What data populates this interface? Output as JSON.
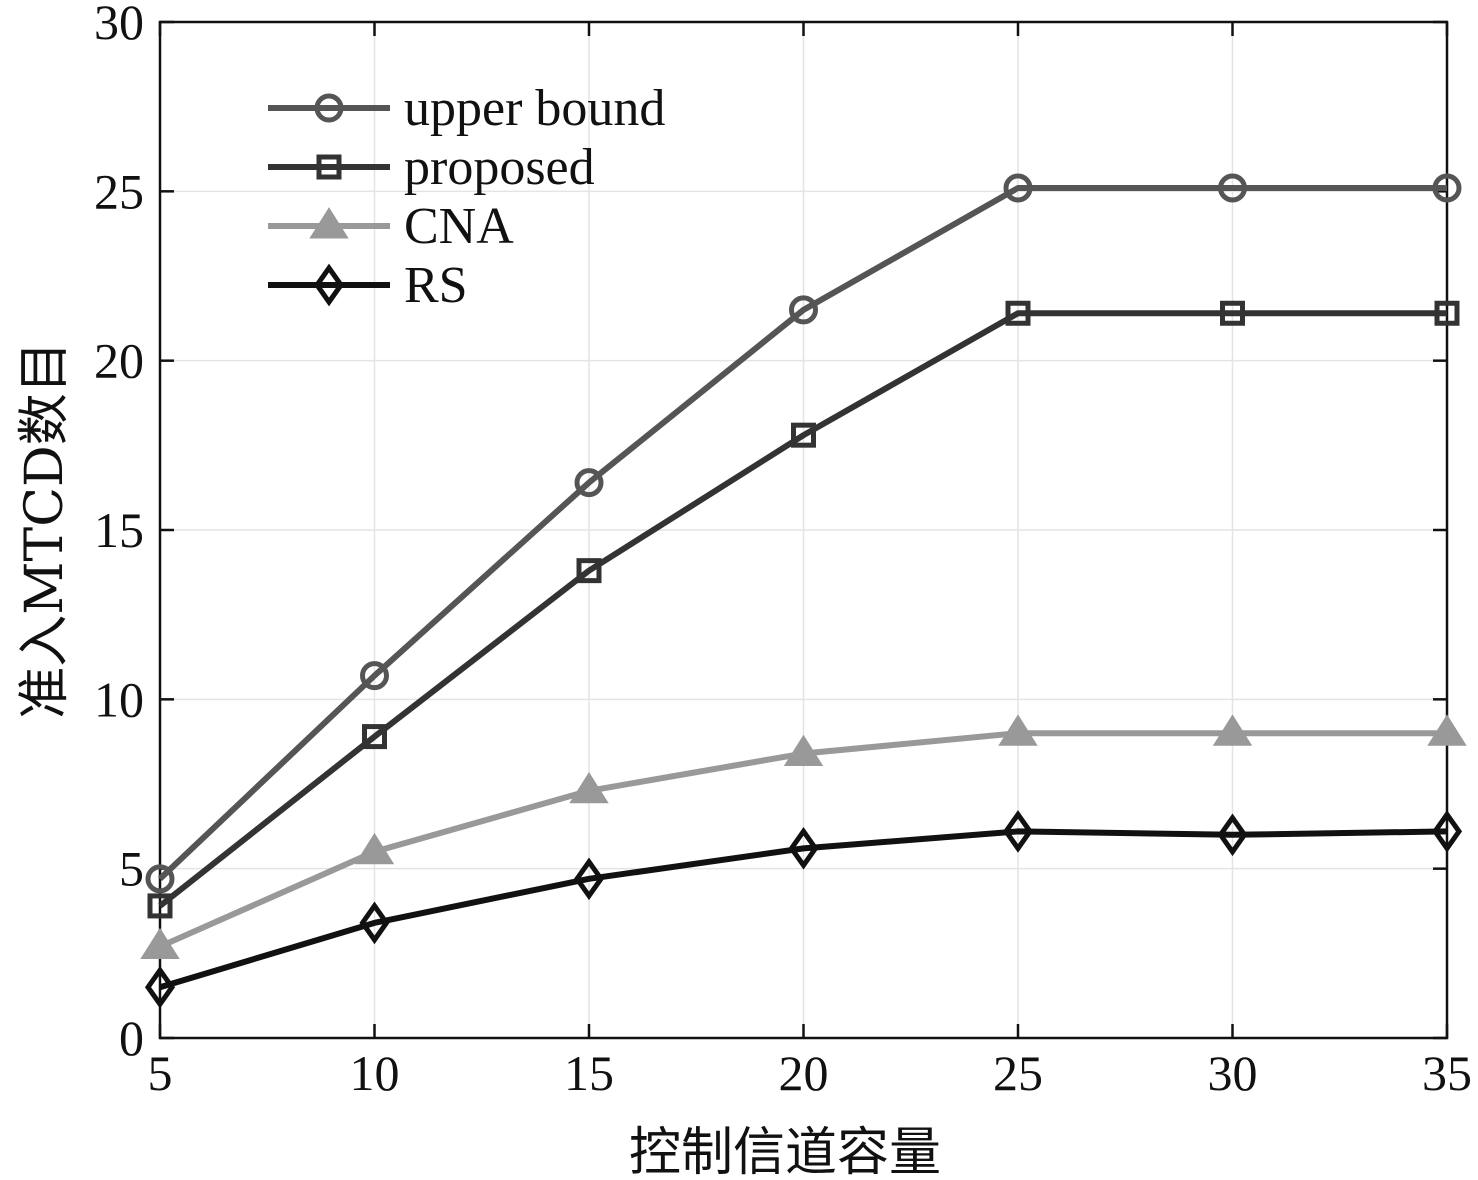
{
  "chart_data": {
    "type": "line",
    "title": "",
    "xlabel": "控制信道容量",
    "ylabel": "准入MTCD数目",
    "xlim": [
      5,
      35
    ],
    "ylim": [
      0,
      30
    ],
    "xticks": [
      5,
      10,
      15,
      20,
      25,
      30,
      35
    ],
    "yticks": [
      0,
      5,
      10,
      15,
      20,
      25,
      30
    ],
    "grid": true,
    "legend_position": "top-left",
    "x": [
      5,
      10,
      15,
      20,
      25,
      30,
      35
    ],
    "series": [
      {
        "name": "upper bound",
        "marker": "circle",
        "color": "#555555",
        "values": [
          4.7,
          10.7,
          16.4,
          21.5,
          25.1,
          25.1,
          25.1
        ]
      },
      {
        "name": "proposed",
        "marker": "square",
        "color": "#333333",
        "values": [
          3.9,
          8.9,
          13.8,
          17.8,
          21.4,
          21.4,
          21.4
        ]
      },
      {
        "name": "CNA",
        "marker": "triangle",
        "color": "#999999",
        "values": [
          2.7,
          5.5,
          7.3,
          8.4,
          9.0,
          9.0,
          9.0
        ]
      },
      {
        "name": "RS",
        "marker": "diamond",
        "color": "#111111",
        "values": [
          1.5,
          3.4,
          4.7,
          5.6,
          6.1,
          6.0,
          6.1
        ]
      }
    ]
  }
}
